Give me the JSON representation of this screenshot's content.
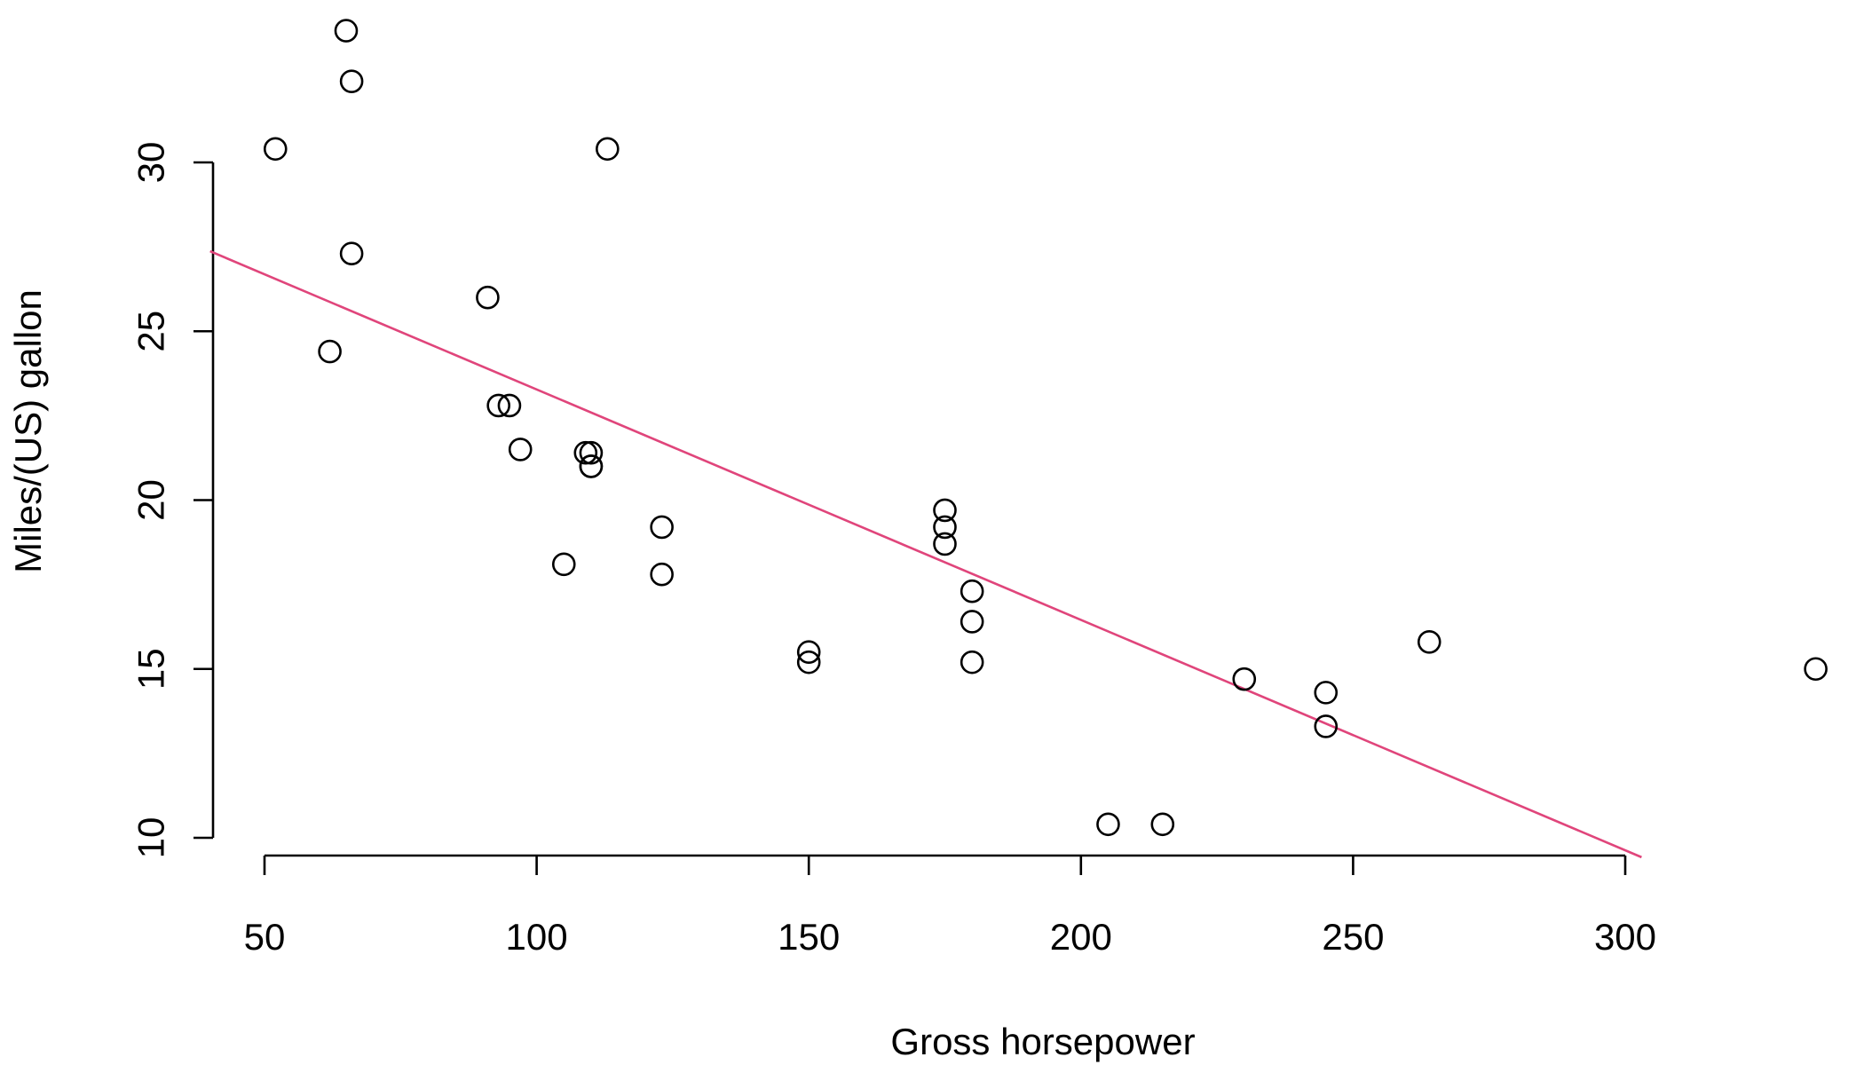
{
  "chart_data": {
    "type": "scatter",
    "title": "",
    "xlabel": "Gross horsepower",
    "ylabel": "Miles/(US) gallon",
    "xlim": [
      40,
      340
    ],
    "ylim": [
      10,
      34
    ],
    "x_ticks": [
      50,
      100,
      150,
      200,
      250,
      300
    ],
    "y_ticks": [
      10,
      15,
      20,
      25,
      30
    ],
    "grid": false,
    "legend": "none",
    "points": [
      {
        "x": 110,
        "y": 21.0
      },
      {
        "x": 110,
        "y": 21.0
      },
      {
        "x": 93,
        "y": 22.8
      },
      {
        "x": 110,
        "y": 21.4
      },
      {
        "x": 175,
        "y": 18.7
      },
      {
        "x": 105,
        "y": 18.1
      },
      {
        "x": 245,
        "y": 14.3
      },
      {
        "x": 62,
        "y": 24.4
      },
      {
        "x": 95,
        "y": 22.8
      },
      {
        "x": 123,
        "y": 19.2
      },
      {
        "x": 123,
        "y": 17.8
      },
      {
        "x": 180,
        "y": 16.4
      },
      {
        "x": 180,
        "y": 17.3
      },
      {
        "x": 180,
        "y": 15.2
      },
      {
        "x": 205,
        "y": 10.4
      },
      {
        "x": 215,
        "y": 10.4
      },
      {
        "x": 230,
        "y": 14.7
      },
      {
        "x": 66,
        "y": 32.4
      },
      {
        "x": 52,
        "y": 30.4
      },
      {
        "x": 65,
        "y": 33.9
      },
      {
        "x": 97,
        "y": 21.5
      },
      {
        "x": 150,
        "y": 15.5
      },
      {
        "x": 150,
        "y": 15.2
      },
      {
        "x": 245,
        "y": 13.3
      },
      {
        "x": 175,
        "y": 19.2
      },
      {
        "x": 66,
        "y": 27.3
      },
      {
        "x": 91,
        "y": 26.0
      },
      {
        "x": 113,
        "y": 30.4
      },
      {
        "x": 264,
        "y": 15.8
      },
      {
        "x": 175,
        "y": 19.7
      },
      {
        "x": 335,
        "y": 15.0
      },
      {
        "x": 109,
        "y": 21.4
      }
    ],
    "fit_line": {
      "intercept": 30.0989,
      "slope": -0.06823,
      "color": "#E0457B"
    },
    "point_color": "#000000"
  }
}
